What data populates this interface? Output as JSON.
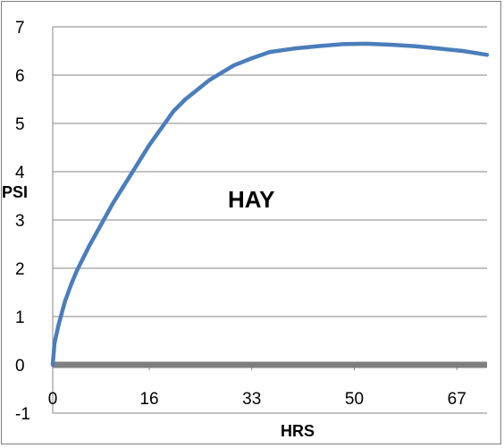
{
  "chart_data": {
    "type": "line",
    "title": "",
    "annotation": "HAY",
    "xlabel": "HRS",
    "ylabel": "PSI",
    "xlim": [
      0,
      72
    ],
    "ylim": [
      -1,
      7
    ],
    "x_ticks": [
      0,
      16,
      33,
      50,
      67
    ],
    "x_tick_labels": [
      "0",
      "16",
      "33",
      "50",
      "67"
    ],
    "y_ticks": [
      -1,
      0,
      1,
      2,
      3,
      4,
      5,
      6,
      7
    ],
    "y_tick_labels": [
      "-1",
      "0",
      "1",
      "2",
      "3",
      "4",
      "5",
      "6",
      "7"
    ],
    "grid": true,
    "legend": "none",
    "colors": {
      "line": "#4a7ebb",
      "baseline": "#7f7f7f",
      "grid": "#868686"
    },
    "series": [
      {
        "values_x": [
          0,
          0.3,
          1,
          2,
          3,
          4,
          6,
          8,
          10,
          12,
          14,
          16,
          18,
          20,
          22,
          24,
          26,
          28,
          30,
          33,
          36,
          40,
          44,
          48,
          52,
          56,
          60,
          64,
          68,
          72
        ],
        "values_y": [
          0.0,
          0.45,
          0.85,
          1.3,
          1.65,
          1.95,
          2.45,
          2.9,
          3.35,
          3.75,
          4.15,
          4.55,
          4.9,
          5.25,
          5.5,
          5.7,
          5.9,
          6.05,
          6.2,
          6.35,
          6.48,
          6.55,
          6.6,
          6.64,
          6.65,
          6.63,
          6.6,
          6.55,
          6.5,
          6.42
        ]
      },
      {
        "values_x": [
          0,
          72
        ],
        "values_y": [
          0,
          0
        ]
      }
    ]
  }
}
